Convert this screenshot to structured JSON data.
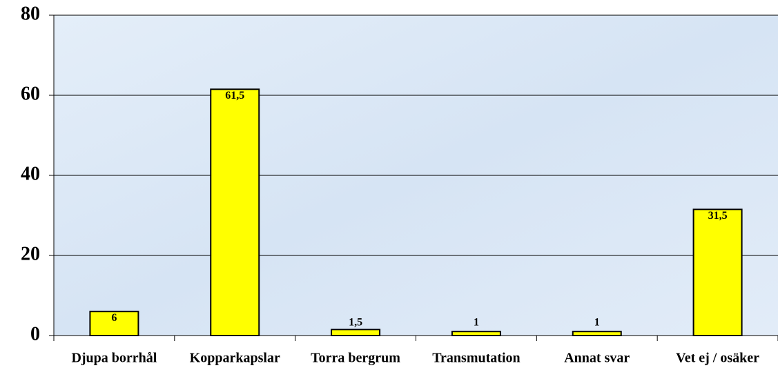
{
  "chart_data": {
    "type": "bar",
    "categories": [
      "Djupa borrhål",
      "Kopparkapslar",
      "Torra bergrum",
      "Transmutation",
      "Annat svar",
      "Vet ej / osäker"
    ],
    "values": [
      6,
      61.5,
      1.5,
      1,
      1,
      31.5
    ],
    "value_labels": [
      "6",
      "61,5",
      "1,5",
      "1",
      "1",
      "31,5"
    ],
    "color": "#ffff00",
    "ylim": [
      0,
      80
    ],
    "yticks": [
      0,
      20,
      40,
      60,
      80
    ],
    "grid": true
  }
}
